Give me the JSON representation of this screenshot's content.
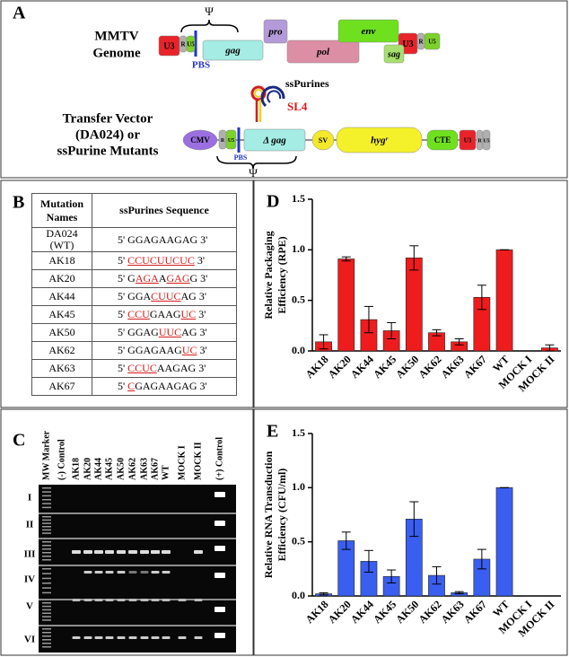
{
  "panel_a": {
    "letter": "A",
    "psi": "Ψ",
    "genome_title": [
      "MMTV",
      "Genome"
    ],
    "genome_segments": [
      "U3",
      "R",
      "U5",
      "gag",
      "pro",
      "pol",
      "env",
      "U3",
      "R",
      "U5",
      "sag"
    ],
    "pbs": "PBS",
    "sspurines": "ssPurines",
    "sl4": "SL4",
    "vector_title": [
      "Transfer Vector",
      "(DA024) or",
      "ssPurine Mutants"
    ],
    "vector_segments": [
      "CMV",
      "R",
      "U5",
      "Δ gag",
      "SV",
      "hygʳ",
      "CTE",
      "U3",
      "R",
      "U5"
    ],
    "vector_pbs": "PBS",
    "vector_psi": "Ψ"
  },
  "panel_b": {
    "letter": "B",
    "header": [
      "Mutation Names",
      "ssPurines Sequence"
    ],
    "rows": [
      {
        "name": "DA024 (WT)",
        "sequence": [
          {
            "text": "5' GGAGAAGAG 3'",
            "mutated": false
          }
        ]
      },
      {
        "name": "AK18",
        "sequence": [
          {
            "text": "5' ",
            "mutated": false
          },
          {
            "text": "CCUCUUCUC",
            "mutated": true
          },
          {
            "text": " 3'",
            "mutated": false
          }
        ]
      },
      {
        "name": "AK20",
        "sequence": [
          {
            "text": "5' G",
            "mutated": false
          },
          {
            "text": "AGA",
            "mutated": true
          },
          {
            "text": "A",
            "mutated": false
          },
          {
            "text": "GAG",
            "mutated": true
          },
          {
            "text": "G 3'",
            "mutated": false
          }
        ]
      },
      {
        "name": "AK44",
        "sequence": [
          {
            "text": "5' GGA",
            "mutated": false
          },
          {
            "text": "CUUC",
            "mutated": true
          },
          {
            "text": "AG 3'",
            "mutated": false
          }
        ]
      },
      {
        "name": "AK45",
        "sequence": [
          {
            "text": "5' ",
            "mutated": false
          },
          {
            "text": "CCU",
            "mutated": true
          },
          {
            "text": "GAAG",
            "mutated": false
          },
          {
            "text": "UC",
            "mutated": true
          },
          {
            "text": " 3'",
            "mutated": false
          }
        ]
      },
      {
        "name": "AK50",
        "sequence": [
          {
            "text": "5' GGAG",
            "mutated": false
          },
          {
            "text": "UUC",
            "mutated": true
          },
          {
            "text": "AG 3'",
            "mutated": false
          }
        ]
      },
      {
        "name": "AK62",
        "sequence": [
          {
            "text": "5' GGAGAAG",
            "mutated": false
          },
          {
            "text": "UC",
            "mutated": true
          },
          {
            "text": " 3'",
            "mutated": false
          }
        ]
      },
      {
        "name": "AK63",
        "sequence": [
          {
            "text": "5' ",
            "mutated": false
          },
          {
            "text": "CCUC",
            "mutated": true
          },
          {
            "text": "AAGAG 3'",
            "mutated": false
          }
        ]
      },
      {
        "name": "AK67",
        "sequence": [
          {
            "text": "5' ",
            "mutated": false
          },
          {
            "text": "C",
            "mutated": true
          },
          {
            "text": "GAGAAGAG 3'",
            "mutated": false
          }
        ]
      }
    ]
  },
  "panel_c": {
    "letter": "C",
    "lanes": [
      "MW Marker",
      "(-) Control",
      "AK18",
      "AK20",
      "AK44",
      "AK45",
      "AK50",
      "AK62",
      "AK63",
      "AK67",
      "WT",
      "MOCK I",
      "MOCK II",
      "(+) Control"
    ],
    "rows": [
      "I",
      "II",
      "III",
      "IV",
      "V",
      "VI"
    ]
  },
  "chart_data": [
    {
      "type": "bar",
      "panel": "D",
      "ylabel": [
        "Relative Packaging",
        "Efficiency (RPE)"
      ],
      "categories": [
        "AK18",
        "AK20",
        "AK44",
        "AK45",
        "AK50",
        "AK62",
        "AK63",
        "AK67",
        "WT",
        "MOCK I",
        "MOCK II"
      ],
      "values": [
        0.09,
        0.91,
        0.31,
        0.2,
        0.92,
        0.18,
        0.09,
        0.53,
        1.0,
        0,
        0.03
      ],
      "errors": [
        0.07,
        0.02,
        0.13,
        0.08,
        0.12,
        0.03,
        0.03,
        0.12,
        0,
        0,
        0.03
      ],
      "color": "#ee1c1c",
      "ylim": [
        0,
        1.5
      ],
      "yticks": [
        {
          "value": 0,
          "label": "0.0"
        },
        0.5,
        {
          "value": 1,
          "label": "1.0"
        },
        1.5
      ],
      "grid": false
    },
    {
      "type": "bar",
      "panel": "E",
      "ylabel": [
        "Relative RNA Transduction",
        "Efficiency (CFU/ml)"
      ],
      "categories": [
        "AK18",
        "AK20",
        "AK44",
        "AK45",
        "AK50",
        "AK62",
        "AK63",
        "AK67",
        "WT",
        "MOCK I",
        "MOCK II"
      ],
      "values": [
        0.02,
        0.51,
        0.32,
        0.18,
        0.71,
        0.19,
        0.03,
        0.34,
        1.0,
        0,
        0
      ],
      "errors": [
        0.01,
        0.08,
        0.1,
        0.06,
        0.16,
        0.08,
        0.01,
        0.09,
        0,
        0,
        0
      ],
      "color": "#3a5ef0",
      "ylim": [
        0,
        1.5
      ],
      "yticks": [
        {
          "value": 0,
          "label": "0.0"
        },
        0.5,
        {
          "value": 1,
          "label": "1.0"
        },
        1.5
      ],
      "grid": false
    }
  ]
}
